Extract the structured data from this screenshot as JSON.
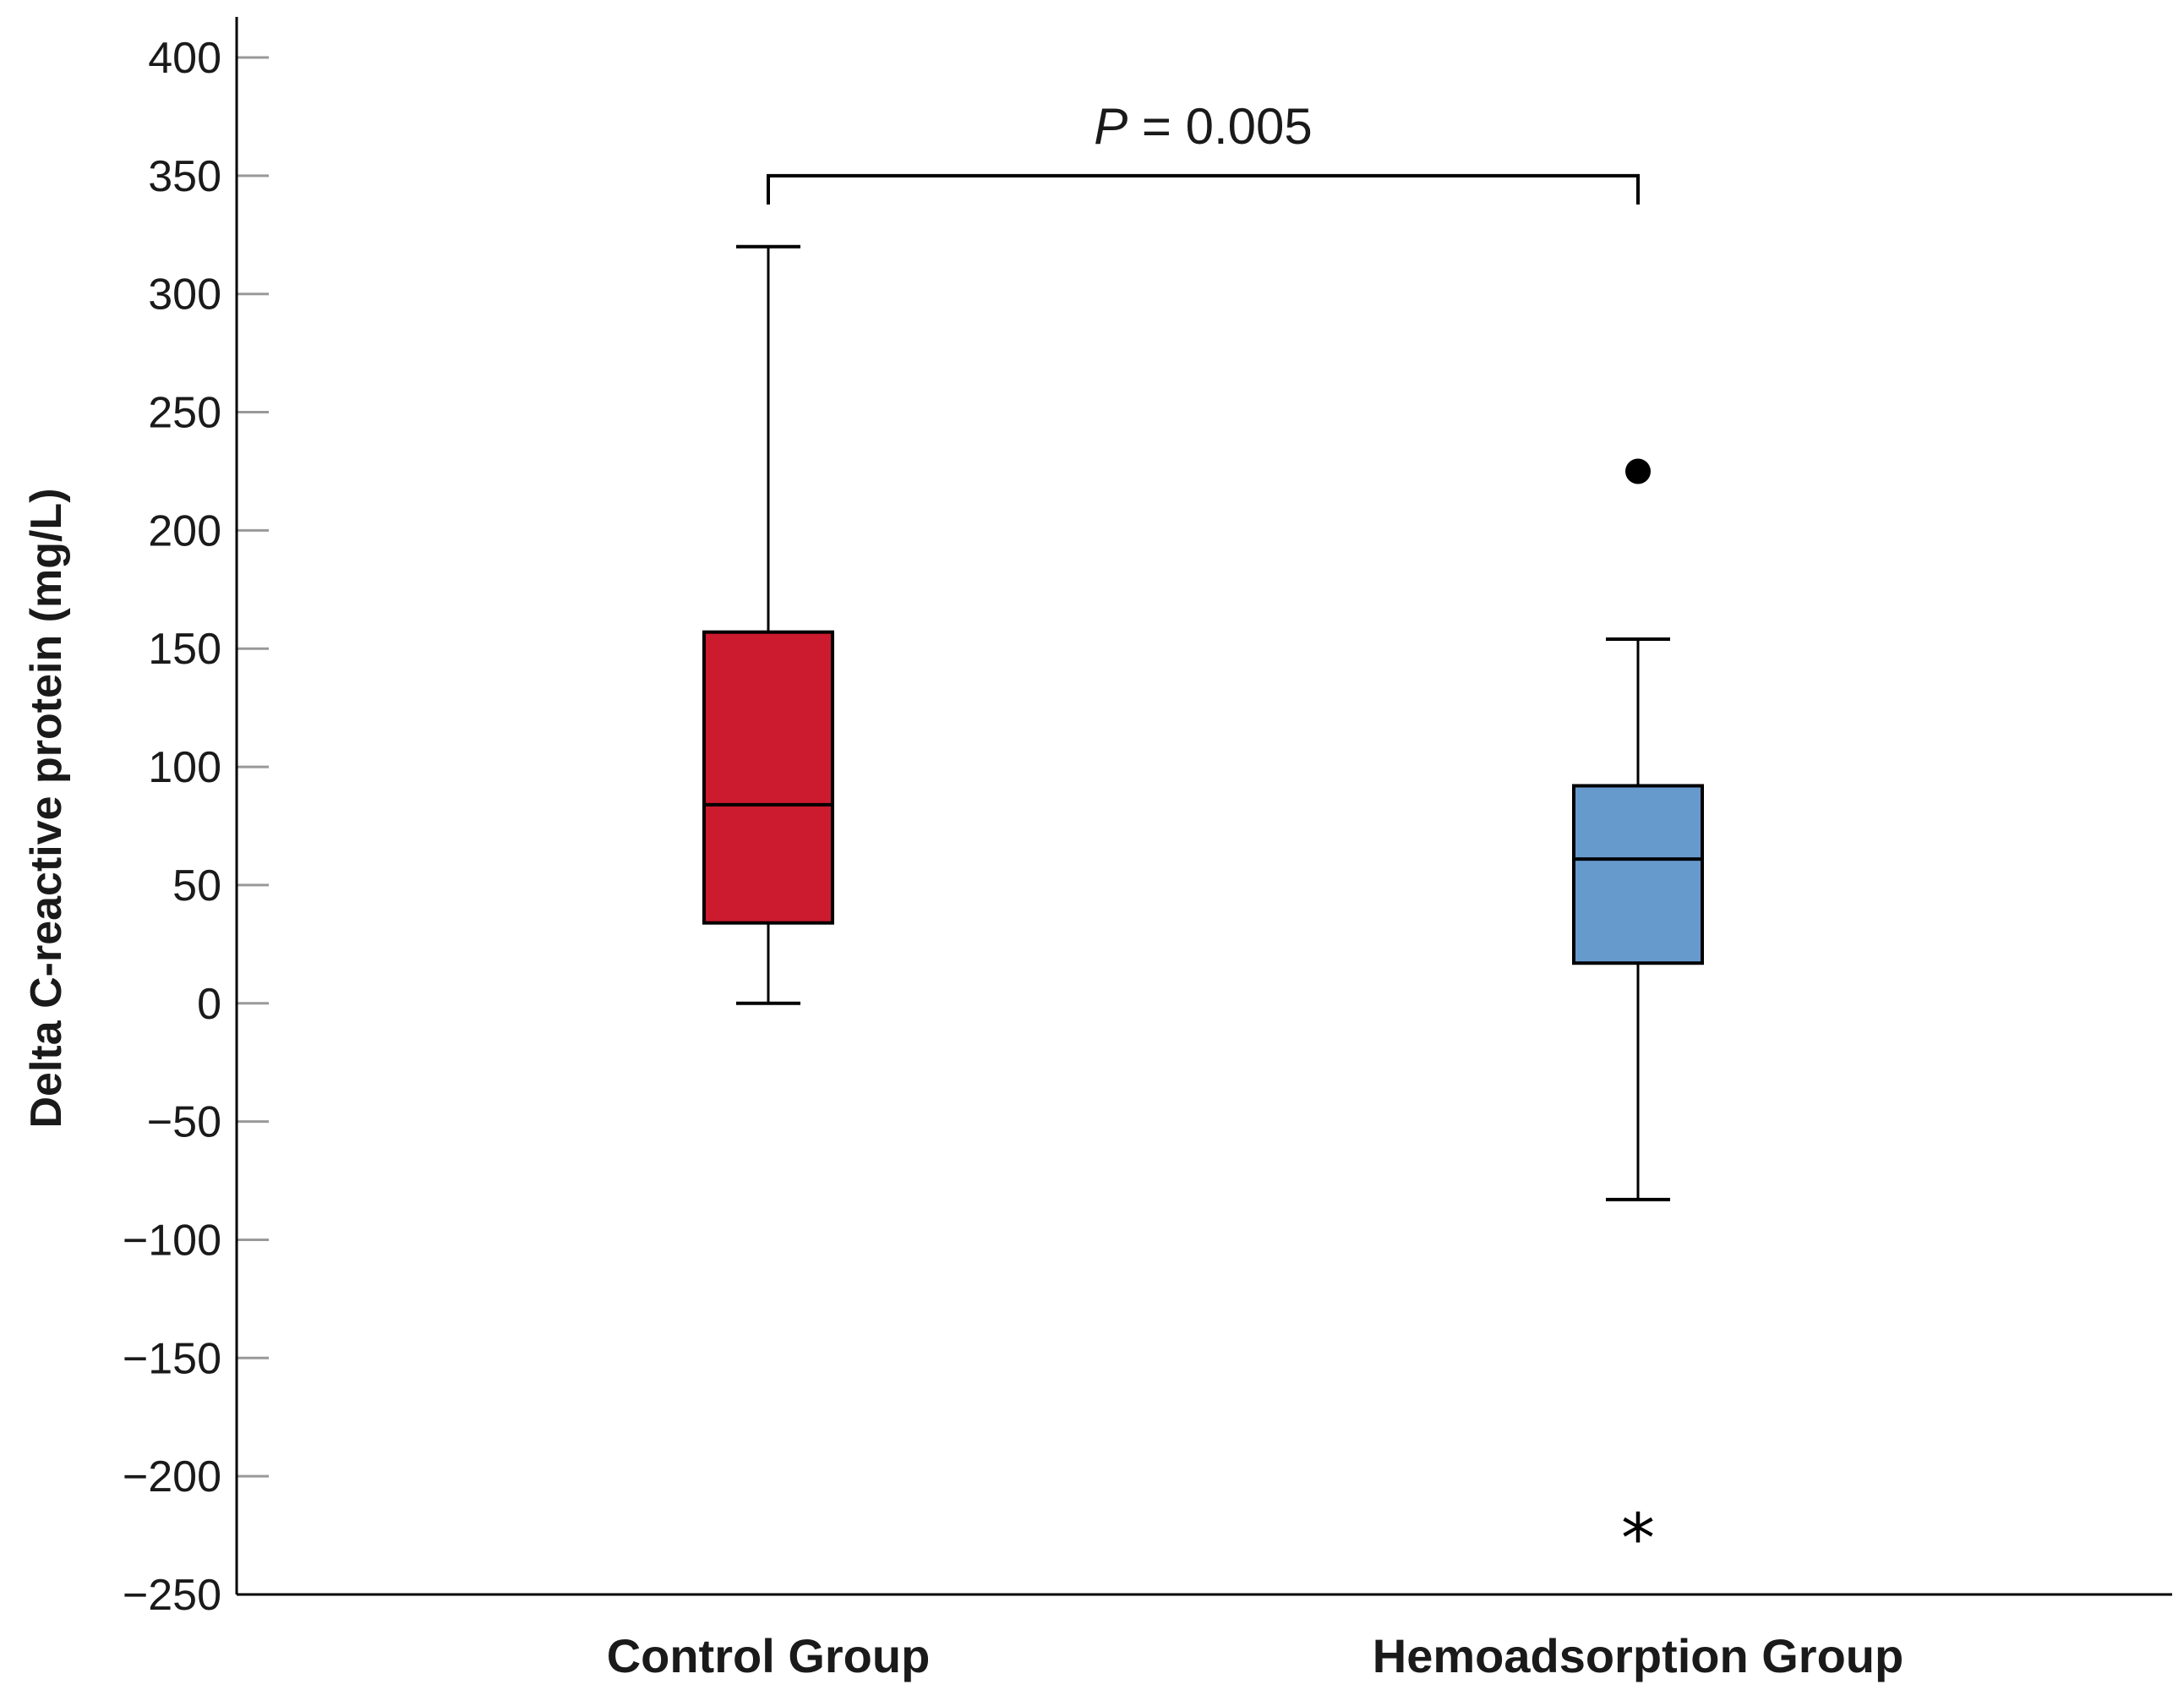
{
  "chart_data": {
    "type": "box",
    "title": "",
    "xlabel": "",
    "ylabel": "Delta C-reactive protein  (mg/L)",
    "ylim": [
      -250,
      400
    ],
    "yticks": [
      400,
      350,
      300,
      250,
      200,
      150,
      100,
      50,
      0,
      -50,
      -100,
      -150,
      -200,
      -250
    ],
    "ytick_labels": [
      "400",
      "350",
      "300",
      "250",
      "200",
      "150",
      "100",
      "50",
      "0",
      "−50",
      "−100",
      "−150",
      "−200",
      "−250"
    ],
    "categories": [
      "Control Group",
      "Hemoadsorption Group"
    ],
    "boxes": [
      {
        "name": "Control Group",
        "whisker_low": 0,
        "q1": 34,
        "median": 84,
        "q3": 157,
        "whisker_high": 320,
        "color": "#cc1a2e",
        "outliers": []
      },
      {
        "name": "Hemoadsorption Group",
        "whisker_low": -83,
        "q1": 17,
        "median": 61,
        "q3": 92,
        "whisker_high": 154,
        "color": "#6699cc",
        "outliers": [
          {
            "value": 225,
            "marker": "circle"
          },
          {
            "value": -222,
            "marker": "star"
          }
        ]
      }
    ],
    "significance": {
      "label_italic": "P",
      "label_rest": " = 0.005",
      "between": [
        "Control Group",
        "Hemoadsorption Group"
      ],
      "y": 350
    }
  }
}
